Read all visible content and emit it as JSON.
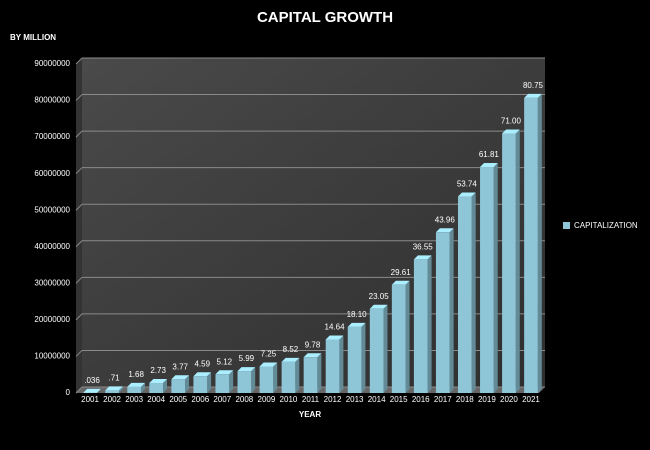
{
  "chart_data": {
    "type": "bar",
    "title": "CAPITAL GROWTH",
    "y_axis_label": "BY MILLION",
    "x_axis_label": "YEAR",
    "categories": [
      "2001",
      "2002",
      "2003",
      "2004",
      "2005",
      "2006",
      "2007",
      "2008",
      "2009",
      "2010",
      "2011",
      "2012",
      "2013",
      "2014",
      "2015",
      "2016",
      "2017",
      "2018",
      "2019",
      "2020",
      "2021"
    ],
    "series": [
      {
        "name": "CAPITALIZATION",
        "color": "#8ec6d8",
        "values": [
          36000,
          710000,
          1680000,
          2730000,
          3770000,
          4590000,
          5120000,
          5990000,
          7250000,
          8520000,
          9780000,
          14640000,
          18100000,
          23050000,
          29610000,
          36550000,
          43960000,
          53740000,
          61810000,
          71000000,
          80750000
        ],
        "value_labels": [
          ".036",
          ".71",
          "1.68",
          "2.73",
          "3.77",
          "4.59",
          "5.12",
          "5.99",
          "7.25",
          "8.52",
          "9.78",
          "14.64",
          "18.10",
          "23.05",
          "29.61",
          "36.55",
          "43.96",
          "53.74",
          "61.81",
          "71.00",
          "80.75"
        ]
      }
    ],
    "ylim": [
      0,
      90000000
    ],
    "yticks": [
      0,
      10000000,
      20000000,
      30000000,
      40000000,
      50000000,
      60000000,
      70000000,
      80000000,
      90000000
    ],
    "grid": true,
    "legend": "right"
  }
}
